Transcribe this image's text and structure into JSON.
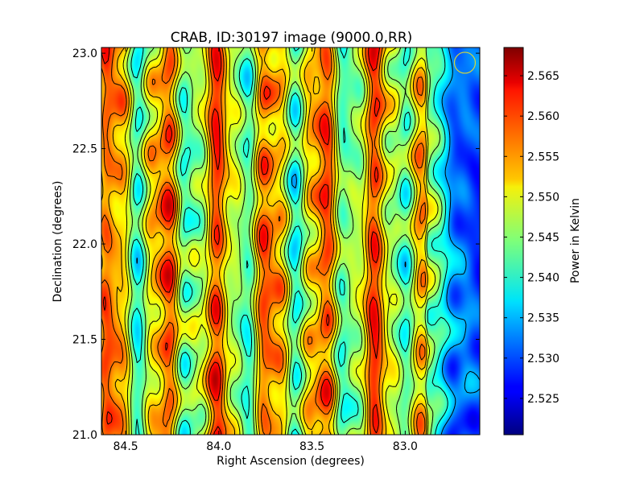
{
  "chart_data": {
    "type": "heatmap",
    "title": "CRAB, ID:30197 image (9000.0,RR)",
    "xlabel": "Right Ascension (degrees)",
    "ylabel": "Declination (degrees)",
    "xlim": [
      84.63,
      82.6
    ],
    "ylim": [
      21.0,
      23.03
    ],
    "x_ticks": [
      84.5,
      84.0,
      83.5,
      83.0
    ],
    "x_tick_labels": [
      "84.5",
      "84.0",
      "83.5",
      "83.0"
    ],
    "y_ticks": [
      21.0,
      21.5,
      22.0,
      22.5,
      23.0
    ],
    "y_tick_labels": [
      "21.0",
      "21.5",
      "22.0",
      "22.5",
      "23.0"
    ],
    "colorbar": {
      "label": "Power in Kelvin",
      "range": [
        2.5205,
        2.5685
      ],
      "ticks": [
        2.525,
        2.53,
        2.535,
        2.54,
        2.545,
        2.55,
        2.555,
        2.56,
        2.565
      ],
      "tick_labels": [
        "2.525",
        "2.530",
        "2.535",
        "2.540",
        "2.545",
        "2.550",
        "2.555",
        "2.560",
        "2.565"
      ],
      "colormap": "jet"
    },
    "contours": true,
    "beam_marker": {
      "ra": 82.68,
      "dec": 22.95,
      "color": "#d6d63a"
    }
  }
}
